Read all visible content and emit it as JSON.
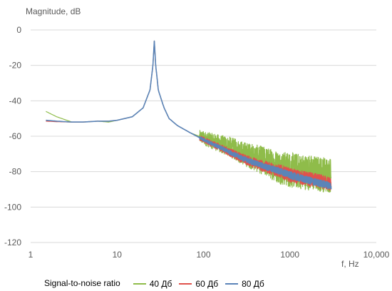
{
  "chart_data": {
    "type": "line",
    "title": "",
    "ylabel": "Magnitude, dB",
    "xlabel": "f, Hz",
    "xscale": "log",
    "xlim": [
      1,
      10000
    ],
    "ylim": [
      -120,
      0
    ],
    "xticks": [
      1,
      10,
      100,
      1000,
      10000
    ],
    "xtick_labels": [
      "1",
      "10",
      "100",
      "1000",
      "10,000"
    ],
    "yticks": [
      0,
      -20,
      -40,
      -60,
      -80,
      -100,
      -120
    ],
    "ytick_labels": [
      "0",
      "-20",
      "-40",
      "-60",
      "-80",
      "-100",
      "-120"
    ],
    "grid": "horizontal",
    "legend_title": "Signal-to-noise ratio",
    "legend_position": "bottom",
    "series": [
      {
        "name": "40 Дб",
        "color": "#8fbc4a",
        "noise_amplitude_db": 10,
        "x": [
          1.5,
          2,
          3,
          4,
          6,
          8,
          9,
          10,
          15,
          20,
          24,
          26,
          27,
          28,
          30,
          35,
          40,
          50,
          70,
          100,
          150,
          200,
          300,
          500,
          800,
          1000,
          2000,
          3000
        ],
        "y": [
          -46,
          -49,
          -52,
          -52,
          -51.5,
          -52,
          -51.5,
          -51,
          -49,
          -44,
          -34,
          -20,
          -6,
          -20,
          -34,
          -44,
          -50,
          -54,
          -58,
          -61,
          -64,
          -66,
          -70,
          -74,
          -78,
          -79,
          -81,
          -82
        ]
      },
      {
        "name": "60 Дб",
        "color": "#e0524c",
        "noise_amplitude_db": 4,
        "x": [
          1.5,
          2,
          3,
          4,
          6,
          8,
          10,
          15,
          20,
          24,
          26,
          27,
          28,
          30,
          35,
          40,
          50,
          70,
          100,
          150,
          200,
          300,
          500,
          800,
          1000,
          2000,
          3000
        ],
        "y": [
          -51.5,
          -51.8,
          -52,
          -52,
          -51.5,
          -51.5,
          -51,
          -49,
          -44,
          -34,
          -20,
          -6,
          -20,
          -34,
          -44,
          -50,
          -54,
          -58,
          -62,
          -66,
          -69,
          -73,
          -77,
          -80,
          -82,
          -85,
          -87
        ]
      },
      {
        "name": "80 Дб",
        "color": "#5b84b8",
        "noise_amplitude_db": 2,
        "x": [
          1.5,
          2,
          3,
          4,
          6,
          8,
          10,
          15,
          20,
          24,
          26,
          27,
          28,
          30,
          35,
          40,
          50,
          70,
          100,
          150,
          200,
          300,
          500,
          800,
          1000,
          2000,
          3000
        ],
        "y": [
          -51,
          -51.5,
          -52,
          -52,
          -51.5,
          -51.5,
          -51,
          -49,
          -44,
          -34,
          -20,
          -6,
          -20,
          -34,
          -44,
          -50,
          -54,
          -58,
          -62,
          -66,
          -69,
          -73,
          -77,
          -80,
          -82,
          -86,
          -88
        ]
      }
    ]
  }
}
